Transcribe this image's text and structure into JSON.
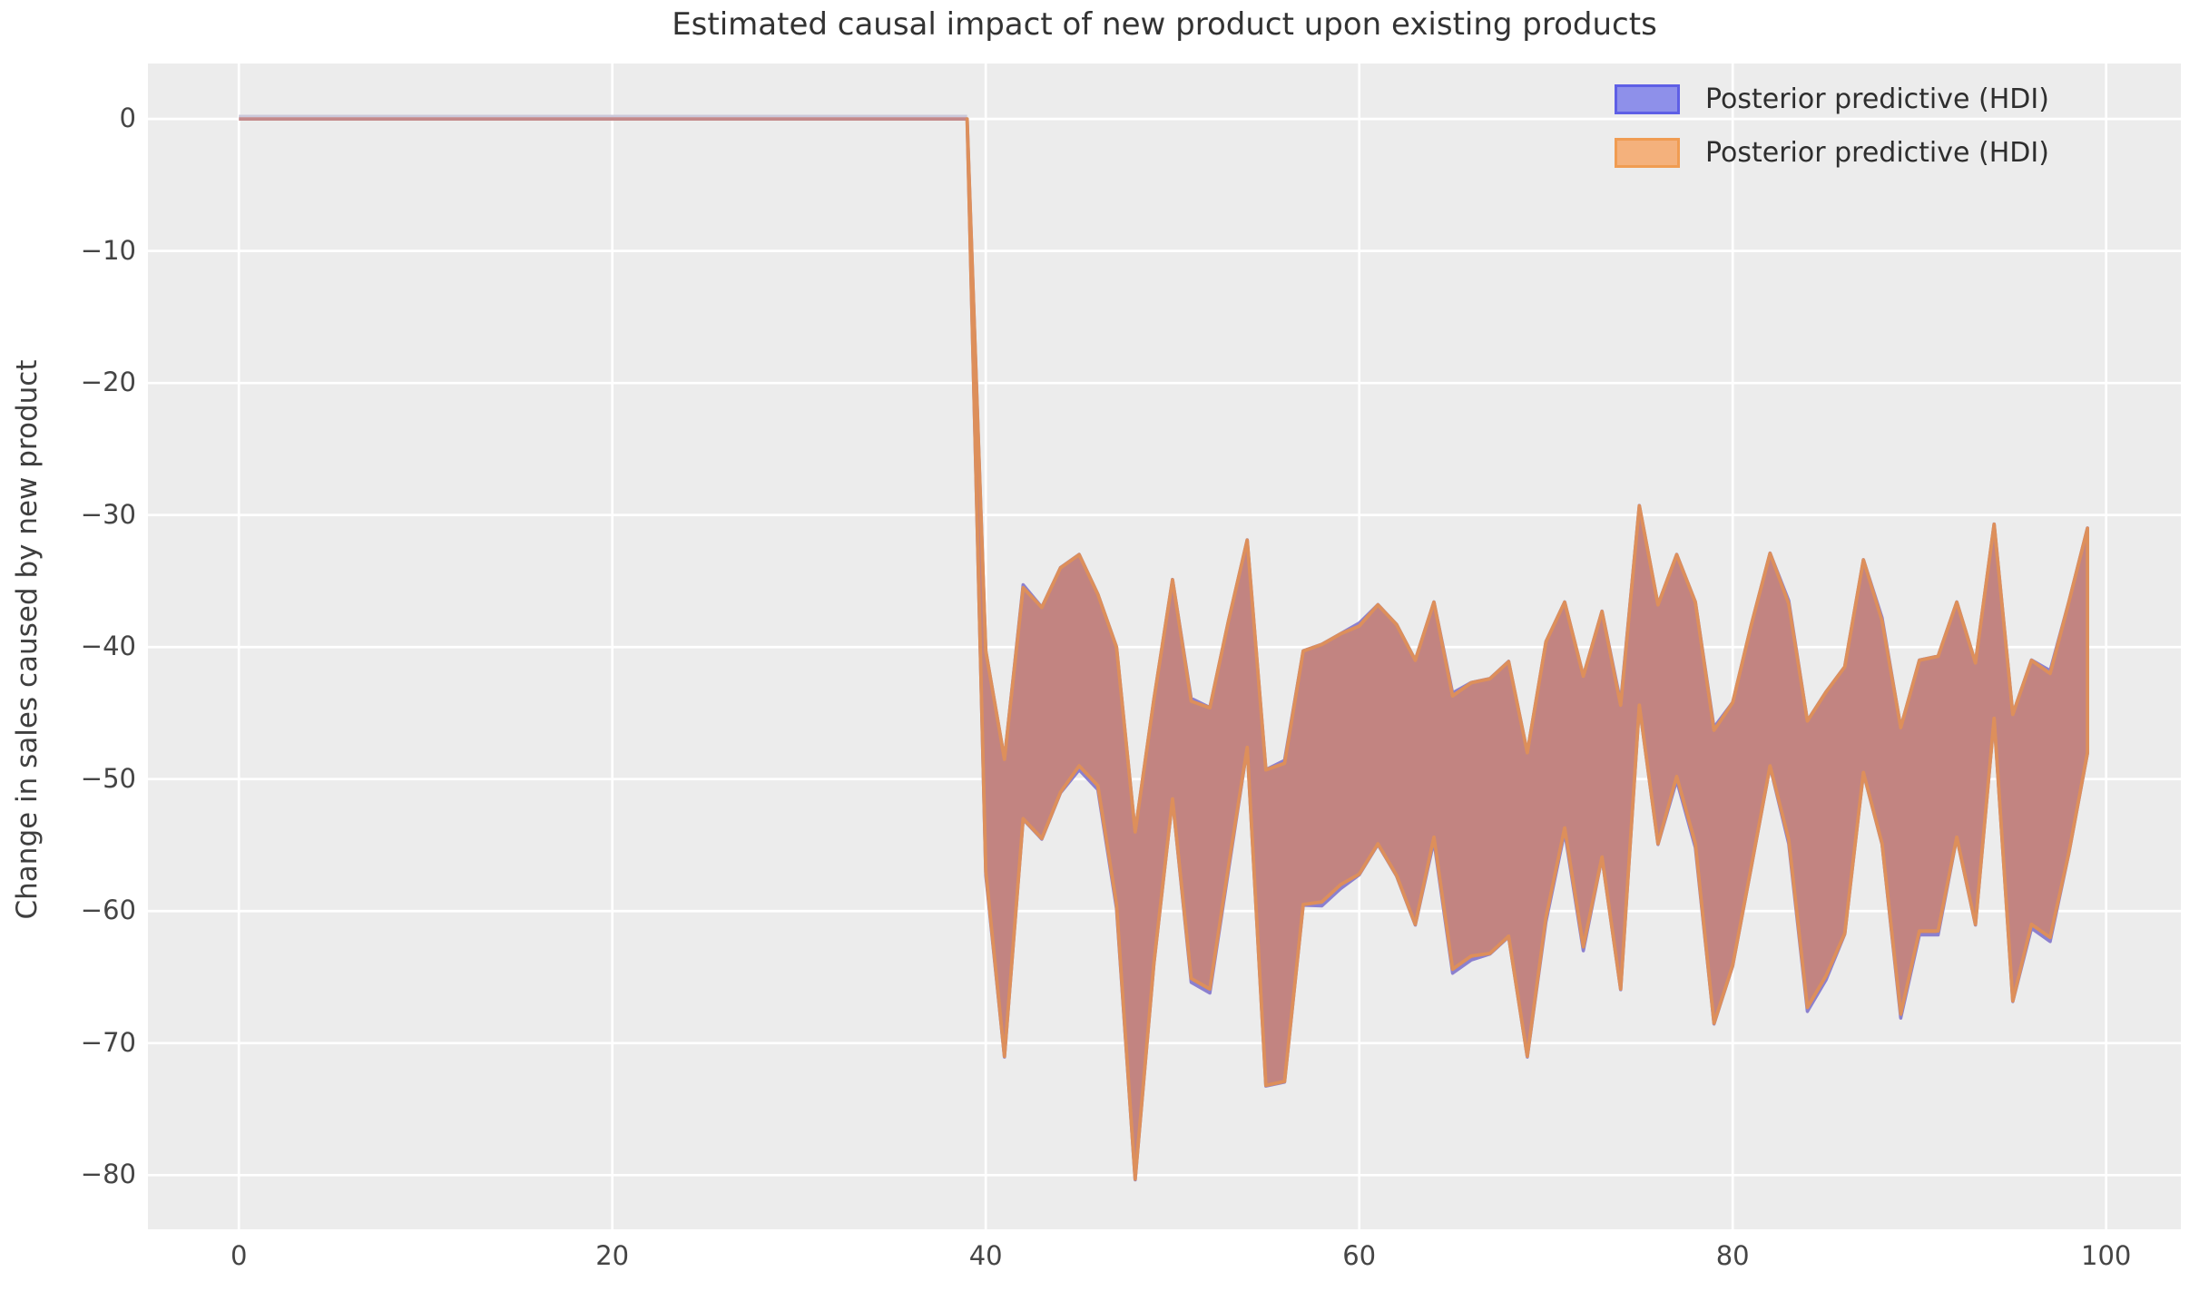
{
  "title": "Estimated causal impact of new product upon existing products",
  "legend": {
    "items": [
      {
        "label": "Posterior predictive (HDI)",
        "face": "#8e90ea",
        "edge": "#5e5fe5"
      },
      {
        "label": "Posterior predictive (HDI)",
        "face": "#f4b17c",
        "edge": "#f09c52"
      }
    ]
  },
  "colors": {
    "figure_bg": "#ffffff",
    "axes_bg": "#ececec",
    "grid": "#ffffff",
    "band_overlap_fill": "#c28481",
    "band_edge_orange": "#dd8f5b",
    "band_edge_blue": "#8b80cf",
    "pre_period_line_rose": "#c4898a",
    "pre_period_line_lavender": "#cac8da",
    "tick_text": "#454545",
    "title_text": "#333333"
  },
  "chart_data": {
    "type": "area",
    "title": "Estimated causal impact of new product upon existing products",
    "xlabel": "",
    "ylabel": "Change in sales caused by new product",
    "xlim": [
      -4.87,
      104.0
    ],
    "ylim": [
      -84.1,
      4.2
    ],
    "xticks": [
      0,
      20,
      40,
      60,
      80,
      100
    ],
    "xtick_labels": [
      "0",
      "20",
      "40",
      "60",
      "80",
      "100"
    ],
    "yticks": [
      0,
      -10,
      -20,
      -30,
      -40,
      -50,
      -60,
      -70,
      -80
    ],
    "ytick_labels": [
      "0",
      "−10",
      "−20",
      "−30",
      "−40",
      "−50",
      "−60",
      "−70",
      "−80"
    ],
    "grid": true,
    "legend_position": "upper right",
    "description": "Causal impact HDI band: zero change during pre-period (x=0..39), then a sharp drop at x=40 and a noisy band of roughly -30 to -80 afterwards. Two nearly identical HDI bands (blue drawn first, orange drawn on top) overlap to a dusty-rose fill.",
    "x": [
      0,
      1,
      2,
      3,
      4,
      5,
      6,
      7,
      8,
      9,
      10,
      11,
      12,
      13,
      14,
      15,
      16,
      17,
      18,
      19,
      20,
      21,
      22,
      23,
      24,
      25,
      26,
      27,
      28,
      29,
      30,
      31,
      32,
      33,
      34,
      35,
      36,
      37,
      38,
      39,
      40,
      41,
      42,
      43,
      44,
      45,
      46,
      47,
      48,
      49,
      50,
      51,
      52,
      53,
      54,
      55,
      56,
      57,
      58,
      59,
      60,
      61,
      62,
      63,
      64,
      65,
      66,
      67,
      68,
      69,
      70,
      71,
      72,
      73,
      74,
      75,
      76,
      77,
      78,
      79,
      80,
      81,
      82,
      83,
      84,
      85,
      86,
      87,
      88,
      89,
      90,
      91,
      92,
      93,
      94,
      95,
      96,
      97,
      98,
      99
    ],
    "upper": [
      0,
      0,
      0,
      0,
      0,
      0,
      0,
      0,
      0,
      0,
      0,
      0,
      0,
      0,
      0,
      0,
      0,
      0,
      0,
      0,
      0,
      0,
      0,
      0,
      0,
      0,
      0,
      0,
      0,
      0,
      0,
      0,
      0,
      0,
      0,
      0,
      0,
      0,
      0,
      0,
      -40.3,
      -48.5,
      -35.5,
      -37,
      -34,
      -33,
      -36,
      -40,
      -54,
      -44,
      -34.9,
      -44.1,
      -44.6,
      -38,
      -31.9,
      -49.3,
      -48.8,
      -40.3,
      -39.8,
      -39,
      -38.4,
      -36.8,
      -38.3,
      -41,
      -36.6,
      -43.7,
      -42.7,
      -42.4,
      -41.1,
      -48,
      -39.6,
      -36.6,
      -42.2,
      -37.3,
      -44.4,
      -29.3,
      -36.8,
      -33,
      -36.6,
      -46.3,
      -44.2,
      -38.3,
      -32.9,
      -36.7,
      -45.6,
      -43.4,
      -41.5,
      -33.4,
      -38,
      -46.1,
      -41,
      -40.7,
      -36.6,
      -41.2,
      -30.7,
      -45.1,
      -41,
      -42,
      -36.6,
      -31
    ],
    "lower": [
      0,
      0,
      0,
      0,
      0,
      0,
      0,
      0,
      0,
      0,
      0,
      0,
      0,
      0,
      0,
      0,
      0,
      0,
      0,
      0,
      0,
      0,
      0,
      0,
      0,
      0,
      0,
      0,
      0,
      0,
      0,
      0,
      0,
      0,
      0,
      0,
      0,
      0,
      0,
      0,
      -57,
      -71,
      -53,
      -54.5,
      -51,
      -49,
      -50.5,
      -59.5,
      -80.3,
      -64,
      -51.5,
      -65.1,
      -65.9,
      -56.6,
      -47.6,
      -73.2,
      -72.9,
      -59.5,
      -59.3,
      -58,
      -57.2,
      -54.9,
      -57.3,
      -61,
      -54.4,
      -64.4,
      -63.4,
      -63.2,
      -61.9,
      -71,
      -60.5,
      -53.7,
      -62.7,
      -55.9,
      -65.9,
      -44.4,
      -54.9,
      -49.8,
      -54.9,
      -68.5,
      -64.1,
      -56.6,
      -49,
      -54.6,
      -67.3,
      -64.9,
      -61.7,
      -49.5,
      -54.9,
      -67.8,
      -61.5,
      -61.5,
      -54.4,
      -61,
      -45.4,
      -66.8,
      -61,
      -62,
      -55.6,
      -48
    ],
    "series": [
      {
        "name": "Posterior predictive (HDI)",
        "face": "#8e90ea",
        "edge": "#5e5fe5",
        "note": "blue band, drawn first; shares 'upper'/'lower' arrays above"
      },
      {
        "name": "Posterior predictive (HDI)",
        "face": "#f4b17c",
        "edge": "#f09c52",
        "note": "orange band, drawn on top; shares 'upper'/'lower' arrays above"
      }
    ]
  }
}
